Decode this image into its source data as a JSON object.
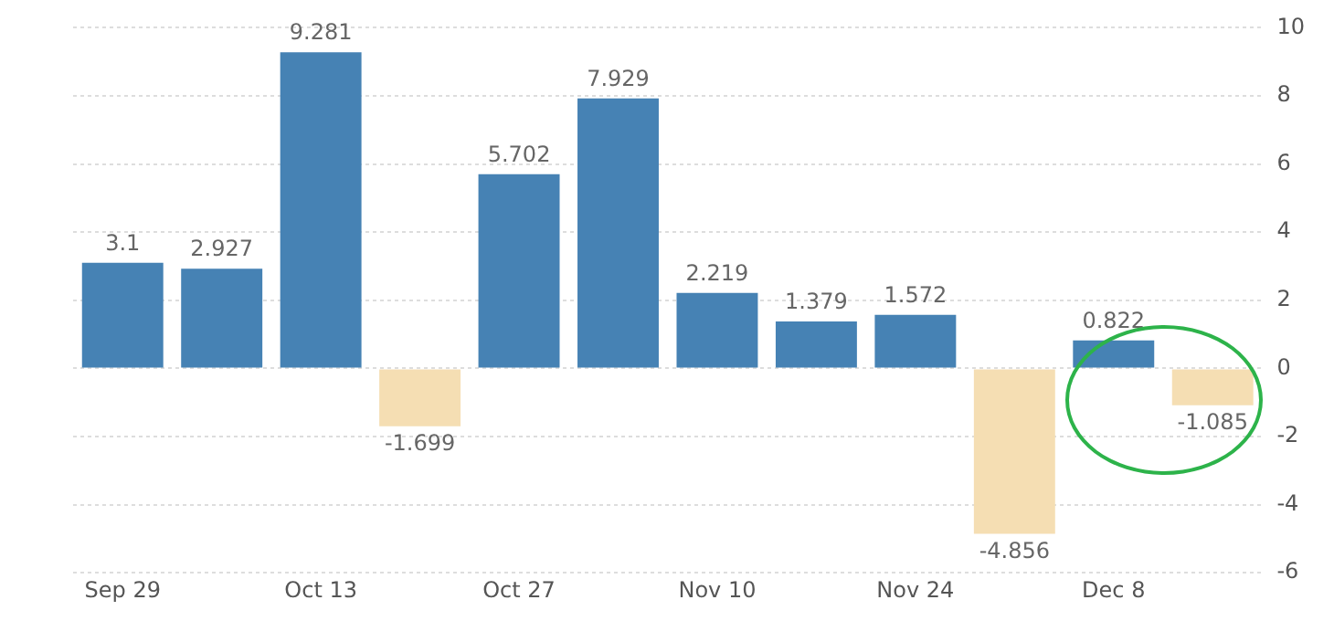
{
  "chart_data": {
    "type": "bar",
    "categories": [
      "Sep 29",
      null,
      "Oct 13",
      null,
      "Oct 27",
      null,
      "Nov 10",
      null,
      "Nov 24",
      null,
      "Dec 8",
      null
    ],
    "values": [
      3.1,
      2.927,
      9.281,
      -1.699,
      5.702,
      7.929,
      2.219,
      1.379,
      1.572,
      -4.856,
      0.822,
      -1.085
    ],
    "colors": [
      "#4682b4",
      "#4682b4",
      "#4682b4",
      "#f5deb3",
      "#4682b4",
      "#4682b4",
      "#4682b4",
      "#4682b4",
      "#4682b4",
      "#f5deb3",
      "#4682b4",
      "#f5deb3"
    ],
    "ylim": [
      -6,
      10
    ],
    "yticks": [
      -6,
      -4,
      -2,
      0,
      2,
      4,
      6,
      8,
      10
    ],
    "grid": "y",
    "data_labels": true,
    "legend": false
  }
}
